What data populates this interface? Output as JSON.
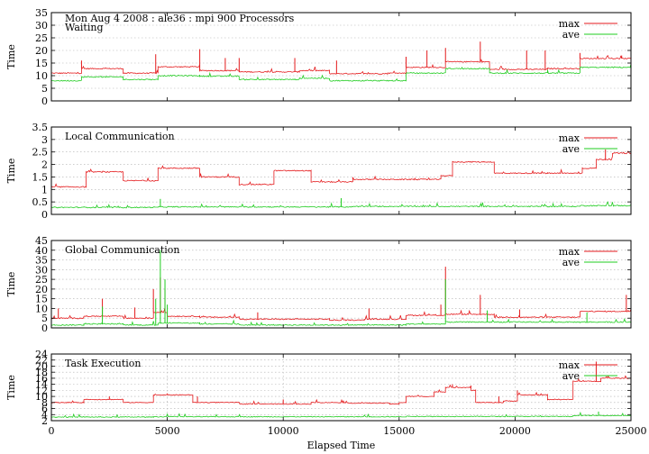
{
  "chart_data": [
    {
      "type": "line",
      "title": "Waiting",
      "header": "Mon Aug 4 2008 : ale36 : mpi 900 Processors",
      "ylabel": "Time",
      "xlabel": "",
      "xlim": [
        0,
        25000
      ],
      "ylim": [
        0,
        35
      ],
      "yticks": [
        0,
        5,
        10,
        15,
        20,
        25,
        30,
        35
      ],
      "xticks": [
        0,
        5000,
        10000,
        15000,
        20000,
        25000
      ],
      "grid": "horizontal dotted",
      "legend_position": "top-right",
      "series": [
        {
          "name": "max",
          "color": "#e41a1c",
          "level": [
            [
              0,
              11
            ],
            [
              1300,
              12.8
            ],
            [
              3100,
              11
            ],
            [
              4600,
              13.5
            ],
            [
              6400,
              12
            ],
            [
              8100,
              11.5
            ],
            [
              10700,
              12
            ],
            [
              12000,
              10.8
            ],
            [
              14500,
              11
            ],
            [
              15300,
              13.3
            ],
            [
              17000,
              15.5
            ],
            [
              18900,
              12.5
            ],
            [
              21400,
              12.8
            ],
            [
              22800,
              16.8
            ],
            [
              25000,
              16.8
            ]
          ],
          "spikes": [
            [
              1300,
              16
            ],
            [
              4500,
              18.5
            ],
            [
              6400,
              20.5
            ],
            [
              7500,
              17
            ],
            [
              8100,
              17
            ],
            [
              10500,
              17
            ],
            [
              12300,
              16
            ],
            [
              15300,
              17.5
            ],
            [
              16200,
              20
            ],
            [
              17000,
              21
            ],
            [
              18500,
              23.5
            ],
            [
              20500,
              20
            ],
            [
              21300,
              20
            ],
            [
              22800,
              19
            ],
            [
              24600,
              18
            ]
          ]
        },
        {
          "name": "ave",
          "color": "#1fcc1f",
          "level": [
            [
              0,
              8
            ],
            [
              1300,
              9.5
            ],
            [
              3100,
              8.5
            ],
            [
              4600,
              10
            ],
            [
              6400,
              9.8
            ],
            [
              8100,
              8.5
            ],
            [
              10700,
              9
            ],
            [
              12000,
              8
            ],
            [
              14500,
              8
            ],
            [
              15300,
              11
            ],
            [
              17000,
              12.8
            ],
            [
              18900,
              11
            ],
            [
              21400,
              11
            ],
            [
              22800,
              13.3
            ],
            [
              25000,
              13.3
            ]
          ],
          "spikes": []
        }
      ]
    },
    {
      "type": "line",
      "title": "Local Communication",
      "ylabel": "Time",
      "xlabel": "",
      "xlim": [
        0,
        25000
      ],
      "ylim": [
        0,
        3.5
      ],
      "yticks": [
        0,
        0.5,
        1,
        1.5,
        2,
        2.5,
        3,
        3.5
      ],
      "xticks": [
        0,
        5000,
        10000,
        15000,
        20000,
        25000
      ],
      "grid": "horizontal dotted",
      "legend_position": "top-right",
      "series": [
        {
          "name": "max",
          "color": "#e41a1c",
          "level": [
            [
              0,
              1.1
            ],
            [
              1500,
              1.7
            ],
            [
              3100,
              1.35
            ],
            [
              4600,
              1.85
            ],
            [
              6400,
              1.5
            ],
            [
              8100,
              1.2
            ],
            [
              9600,
              1.75
            ],
            [
              11200,
              1.3
            ],
            [
              13000,
              1.4
            ],
            [
              16800,
              1.55
            ],
            [
              17300,
              2.1
            ],
            [
              19100,
              1.65
            ],
            [
              21400,
              1.65
            ],
            [
              22900,
              1.85
            ],
            [
              23500,
              2.2
            ],
            [
              24200,
              2.45
            ],
            [
              25000,
              2.5
            ]
          ],
          "spikes": [
            [
              23900,
              2.6
            ],
            [
              25000,
              2.9
            ]
          ]
        },
        {
          "name": "ave",
          "color": "#1fcc1f",
          "level": [
            [
              0,
              0.28
            ],
            [
              4600,
              0.3
            ],
            [
              13000,
              0.32
            ],
            [
              22800,
              0.35
            ],
            [
              25000,
              0.4
            ]
          ],
          "spikes": [
            [
              4700,
              0.62
            ],
            [
              12500,
              0.65
            ]
          ]
        }
      ]
    },
    {
      "type": "line",
      "title": "Global Communication",
      "ylabel": "Time",
      "xlabel": "",
      "xlim": [
        0,
        25000
      ],
      "ylim": [
        0,
        45
      ],
      "yticks": [
        0,
        5,
        10,
        15,
        20,
        25,
        30,
        35,
        40,
        45
      ],
      "xticks": [
        0,
        5000,
        10000,
        15000,
        20000,
        25000
      ],
      "grid": "horizontal dotted",
      "legend_position": "top-right",
      "series": [
        {
          "name": "max",
          "color": "#e41a1c",
          "level": [
            [
              0,
              5
            ],
            [
              1400,
              6
            ],
            [
              3100,
              5
            ],
            [
              4400,
              8
            ],
            [
              5000,
              6
            ],
            [
              6400,
              5.5
            ],
            [
              8100,
              4.5
            ],
            [
              10600,
              4.5
            ],
            [
              12000,
              4
            ],
            [
              13500,
              4.5
            ],
            [
              15300,
              6.5
            ],
            [
              17000,
              7
            ],
            [
              19100,
              5.5
            ],
            [
              22800,
              8.5
            ],
            [
              25000,
              8.5
            ]
          ],
          "spikes": [
            [
              300,
              10
            ],
            [
              2200,
              15
            ],
            [
              3600,
              10.5
            ],
            [
              4400,
              20
            ],
            [
              4700,
              26
            ],
            [
              4900,
              20
            ],
            [
              8900,
              8
            ],
            [
              13700,
              10
            ],
            [
              16800,
              12
            ],
            [
              17000,
              31.5
            ],
            [
              18500,
              17
            ],
            [
              20200,
              9.5
            ],
            [
              24800,
              17
            ]
          ]
        },
        {
          "name": "ave",
          "color": "#1fcc1f",
          "level": [
            [
              0,
              1.5
            ],
            [
              1400,
              2
            ],
            [
              3100,
              1.5
            ],
            [
              4600,
              2.5
            ],
            [
              6400,
              2
            ],
            [
              8100,
              1.5
            ],
            [
              15300,
              2
            ],
            [
              17000,
              3
            ],
            [
              22800,
              3
            ],
            [
              25000,
              3
            ]
          ],
          "spikes": [
            [
              2200,
              11
            ],
            [
              4500,
              15
            ],
            [
              4700,
              40
            ],
            [
              4900,
              25
            ],
            [
              5000,
              12
            ],
            [
              17000,
              25
            ],
            [
              18800,
              9
            ],
            [
              23100,
              8
            ]
          ]
        }
      ]
    },
    {
      "type": "line",
      "title": "Task Execution",
      "ylabel": "Time",
      "xlabel": "Elapsed Time",
      "xlim": [
        0,
        25000
      ],
      "ylim": [
        2,
        24
      ],
      "yticks": [
        2,
        4,
        6,
        8,
        10,
        12,
        14,
        16,
        18,
        20,
        22,
        24
      ],
      "xticks": [
        0,
        5000,
        10000,
        15000,
        20000,
        25000
      ],
      "xticklabels": [
        "0",
        "5000",
        "10000",
        "15000",
        "20000",
        "25000"
      ],
      "grid": "both dotted",
      "legend_position": "top-right",
      "series": [
        {
          "name": "max",
          "color": "#e41a1c",
          "level": [
            [
              0,
              8
            ],
            [
              1400,
              9
            ],
            [
              3100,
              8
            ],
            [
              4400,
              10.5
            ],
            [
              6100,
              8
            ],
            [
              8100,
              7.5
            ],
            [
              11200,
              8
            ],
            [
              12600,
              7.8
            ],
            [
              14600,
              7.5
            ],
            [
              15000,
              8
            ],
            [
              15300,
              10
            ],
            [
              16500,
              11.5
            ],
            [
              17000,
              13
            ],
            [
              18100,
              12
            ],
            [
              18300,
              8
            ],
            [
              19500,
              8.5
            ],
            [
              20100,
              10.5
            ],
            [
              21000,
              10.5
            ],
            [
              21400,
              9
            ],
            [
              22500,
              15
            ],
            [
              23300,
              15
            ],
            [
              23700,
              16
            ],
            [
              25000,
              16
            ]
          ],
          "spikes": [
            [
              2500,
              10
            ],
            [
              5000,
              11
            ],
            [
              6300,
              10
            ],
            [
              10000,
              9
            ],
            [
              17300,
              14
            ],
            [
              19300,
              10
            ],
            [
              20100,
              12
            ],
            [
              23500,
              21.5
            ]
          ]
        },
        {
          "name": "ave",
          "color": "#1fcc1f",
          "level": [
            [
              0,
              3.2
            ],
            [
              4400,
              3.3
            ],
            [
              15300,
              3.4
            ],
            [
              22500,
              3.7
            ],
            [
              25000,
              3.8
            ]
          ],
          "spikes": [
            [
              23600,
              5
            ]
          ]
        }
      ]
    }
  ]
}
